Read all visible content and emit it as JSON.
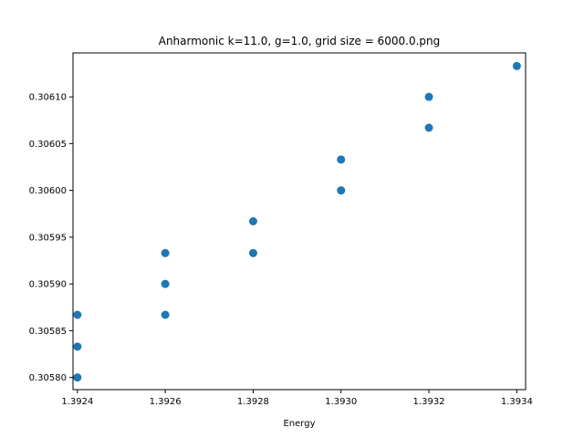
{
  "chart_data": {
    "type": "scatter",
    "title": "Anharmonic  k=11.0, g=1.0, grid size = 6000.0.png",
    "xlabel": "Energy",
    "ylabel": "",
    "xlim": [
      1.39239,
      1.39342
    ],
    "ylim": [
      0.305787,
      0.306147
    ],
    "xticks": [
      1.3924,
      1.3926,
      1.3928,
      1.393,
      1.3932,
      1.3934
    ],
    "xtick_labels": [
      "1.3924",
      "1.3926",
      "1.3928",
      "1.3930",
      "1.3932",
      "1.3934"
    ],
    "yticks": [
      0.3058,
      0.30585,
      0.3059,
      0.30595,
      0.306,
      0.30605,
      0.3061
    ],
    "ytick_labels": [
      "0.30580",
      "0.30585",
      "0.30590",
      "0.30595",
      "0.30600",
      "0.30605",
      "0.30610"
    ],
    "grid": false,
    "color": "#1f77b4",
    "points": [
      {
        "x": 1.3924,
        "y": 0.3058
      },
      {
        "x": 1.3924,
        "y": 0.305833
      },
      {
        "x": 1.3924,
        "y": 0.305867
      },
      {
        "x": 1.3926,
        "y": 0.305867
      },
      {
        "x": 1.3926,
        "y": 0.3059
      },
      {
        "x": 1.3926,
        "y": 0.305933
      },
      {
        "x": 1.3928,
        "y": 0.305933
      },
      {
        "x": 1.3928,
        "y": 0.305967
      },
      {
        "x": 1.393,
        "y": 0.306
      },
      {
        "x": 1.393,
        "y": 0.306033
      },
      {
        "x": 1.3932,
        "y": 0.306067
      },
      {
        "x": 1.3932,
        "y": 0.3061
      },
      {
        "x": 1.3934,
        "y": 0.306133
      }
    ]
  }
}
